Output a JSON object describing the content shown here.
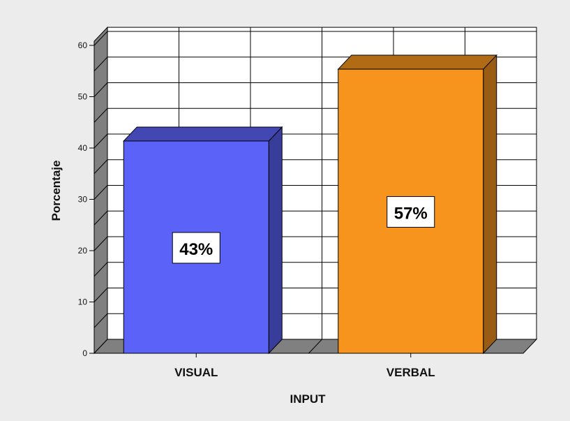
{
  "chart_data": {
    "type": "bar",
    "style": "3d",
    "categories": [
      "VISUAL",
      "VERBAL"
    ],
    "values": [
      43,
      57
    ],
    "data_labels": [
      "43%",
      "57%"
    ],
    "bar_colors": [
      "#5b62f8",
      "#f7941d"
    ],
    "title": "",
    "xlabel": "INPUT",
    "ylabel": "Porcentaje",
    "ylim": [
      0,
      60
    ],
    "yticks": [
      0,
      10,
      20,
      30,
      40,
      50,
      60
    ],
    "grid": true,
    "legend": "none"
  }
}
